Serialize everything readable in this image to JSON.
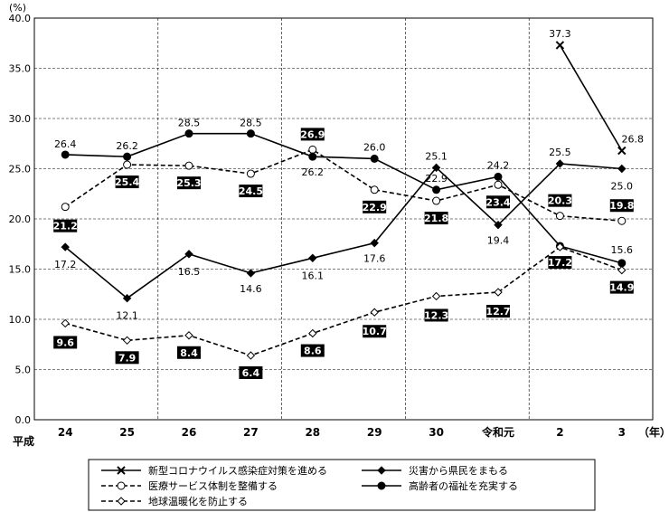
{
  "chart_data": {
    "type": "line",
    "unit_label": "(%)",
    "x_prefix": "平成",
    "x_unit": "（年）",
    "categories": [
      "24",
      "25",
      "26",
      "27",
      "28",
      "29",
      "30",
      "令和元",
      "2",
      "3"
    ],
    "ylim": [
      0,
      40
    ],
    "yticks": [
      "0.0",
      "5.0",
      "10.0",
      "15.0",
      "20.0",
      "25.0",
      "30.0",
      "35.0",
      "40.0"
    ],
    "series": [
      {
        "name": "新型コロナウイルス感染症対策を進める",
        "marker": "x",
        "dashed": false,
        "labels_boxed": false,
        "values": [
          null,
          null,
          null,
          null,
          null,
          null,
          null,
          null,
          37.3,
          26.8
        ]
      },
      {
        "name": "災害から県民をまもる",
        "marker": "diamond-filled",
        "dashed": false,
        "labels_boxed": false,
        "values": [
          17.2,
          12.1,
          16.5,
          14.6,
          16.1,
          17.6,
          25.1,
          19.4,
          25.5,
          25.0
        ]
      },
      {
        "name": "医療サービス体制を整備する",
        "marker": "circle-open",
        "dashed": true,
        "labels_boxed": true,
        "values": [
          21.2,
          25.4,
          25.3,
          24.5,
          26.9,
          22.9,
          21.8,
          23.4,
          20.3,
          19.8
        ]
      },
      {
        "name": "高齢者の福祉を充実する",
        "marker": "circle-filled",
        "dashed": false,
        "labels_boxed": false,
        "values": [
          26.4,
          26.2,
          28.5,
          28.5,
          26.2,
          26.0,
          22.9,
          24.2,
          17.3,
          15.6
        ]
      },
      {
        "name": "地球温暖化を防止する",
        "marker": "diamond-open",
        "dashed": true,
        "labels_boxed": true,
        "values": [
          9.6,
          7.9,
          8.4,
          6.4,
          8.6,
          10.7,
          12.3,
          12.7,
          17.2,
          14.9
        ]
      }
    ],
    "data_labels": [
      {
        "text": "37.3",
        "series": 0,
        "i": 8
      },
      {
        "text": "26.8",
        "series": 0,
        "i": 9
      },
      {
        "text": "17.2",
        "series": 1,
        "i": 0
      },
      {
        "text": "12.1",
        "series": 1,
        "i": 1
      },
      {
        "text": "16.5",
        "series": 1,
        "i": 2
      },
      {
        "text": "14.6",
        "series": 1,
        "i": 3
      },
      {
        "text": "16.1",
        "series": 1,
        "i": 4
      },
      {
        "text": "17.6",
        "series": 1,
        "i": 5
      },
      {
        "text": "25.1",
        "series": 1,
        "i": 6
      },
      {
        "text": "19.4",
        "series": 1,
        "i": 7
      },
      {
        "text": "25.5",
        "series": 1,
        "i": 8
      },
      {
        "text": "25.0",
        "series": 1,
        "i": 9
      },
      {
        "text": "21.2",
        "series": 2,
        "i": 0
      },
      {
        "text": "25.4",
        "series": 2,
        "i": 1
      },
      {
        "text": "25.3",
        "series": 2,
        "i": 2
      },
      {
        "text": "24.5",
        "series": 2,
        "i": 3
      },
      {
        "text": "26.9",
        "series": 2,
        "i": 4
      },
      {
        "text": "22.9",
        "series": 2,
        "i": 5
      },
      {
        "text": "21.8",
        "series": 2,
        "i": 6
      },
      {
        "text": "23.4",
        "series": 2,
        "i": 7
      },
      {
        "text": "20.3",
        "series": 2,
        "i": 8
      },
      {
        "text": "19.8",
        "series": 2,
        "i": 9
      },
      {
        "text": "26.4",
        "series": 3,
        "i": 0
      },
      {
        "text": "26.2",
        "series": 3,
        "i": 1
      },
      {
        "text": "28.5",
        "series": 3,
        "i": 2
      },
      {
        "text": "28.5",
        "series": 3,
        "i": 3
      },
      {
        "text": "26.2",
        "series": 3,
        "i": 4
      },
      {
        "text": "26.0",
        "series": 3,
        "i": 5
      },
      {
        "text": "22.9",
        "series": 3,
        "i": 6
      },
      {
        "text": "24.2",
        "series": 3,
        "i": 7
      },
      {
        "text": "17.3",
        "series": 3,
        "i": 8
      },
      {
        "text": "15.6",
        "series": 3,
        "i": 9
      },
      {
        "text": "9.6",
        "series": 4,
        "i": 0
      },
      {
        "text": "7.9",
        "series": 4,
        "i": 1
      },
      {
        "text": "8.4",
        "series": 4,
        "i": 2
      },
      {
        "text": "6.4",
        "series": 4,
        "i": 3
      },
      {
        "text": "8.6",
        "series": 4,
        "i": 4
      },
      {
        "text": "10.7",
        "series": 4,
        "i": 5
      },
      {
        "text": "12.3",
        "series": 4,
        "i": 6
      },
      {
        "text": "12.7",
        "series": 4,
        "i": 7
      },
      {
        "text": "17.2",
        "series": 4,
        "i": 8
      },
      {
        "text": "14.9",
        "series": 4,
        "i": 9
      }
    ],
    "grid": true,
    "legend_position": "bottom"
  }
}
